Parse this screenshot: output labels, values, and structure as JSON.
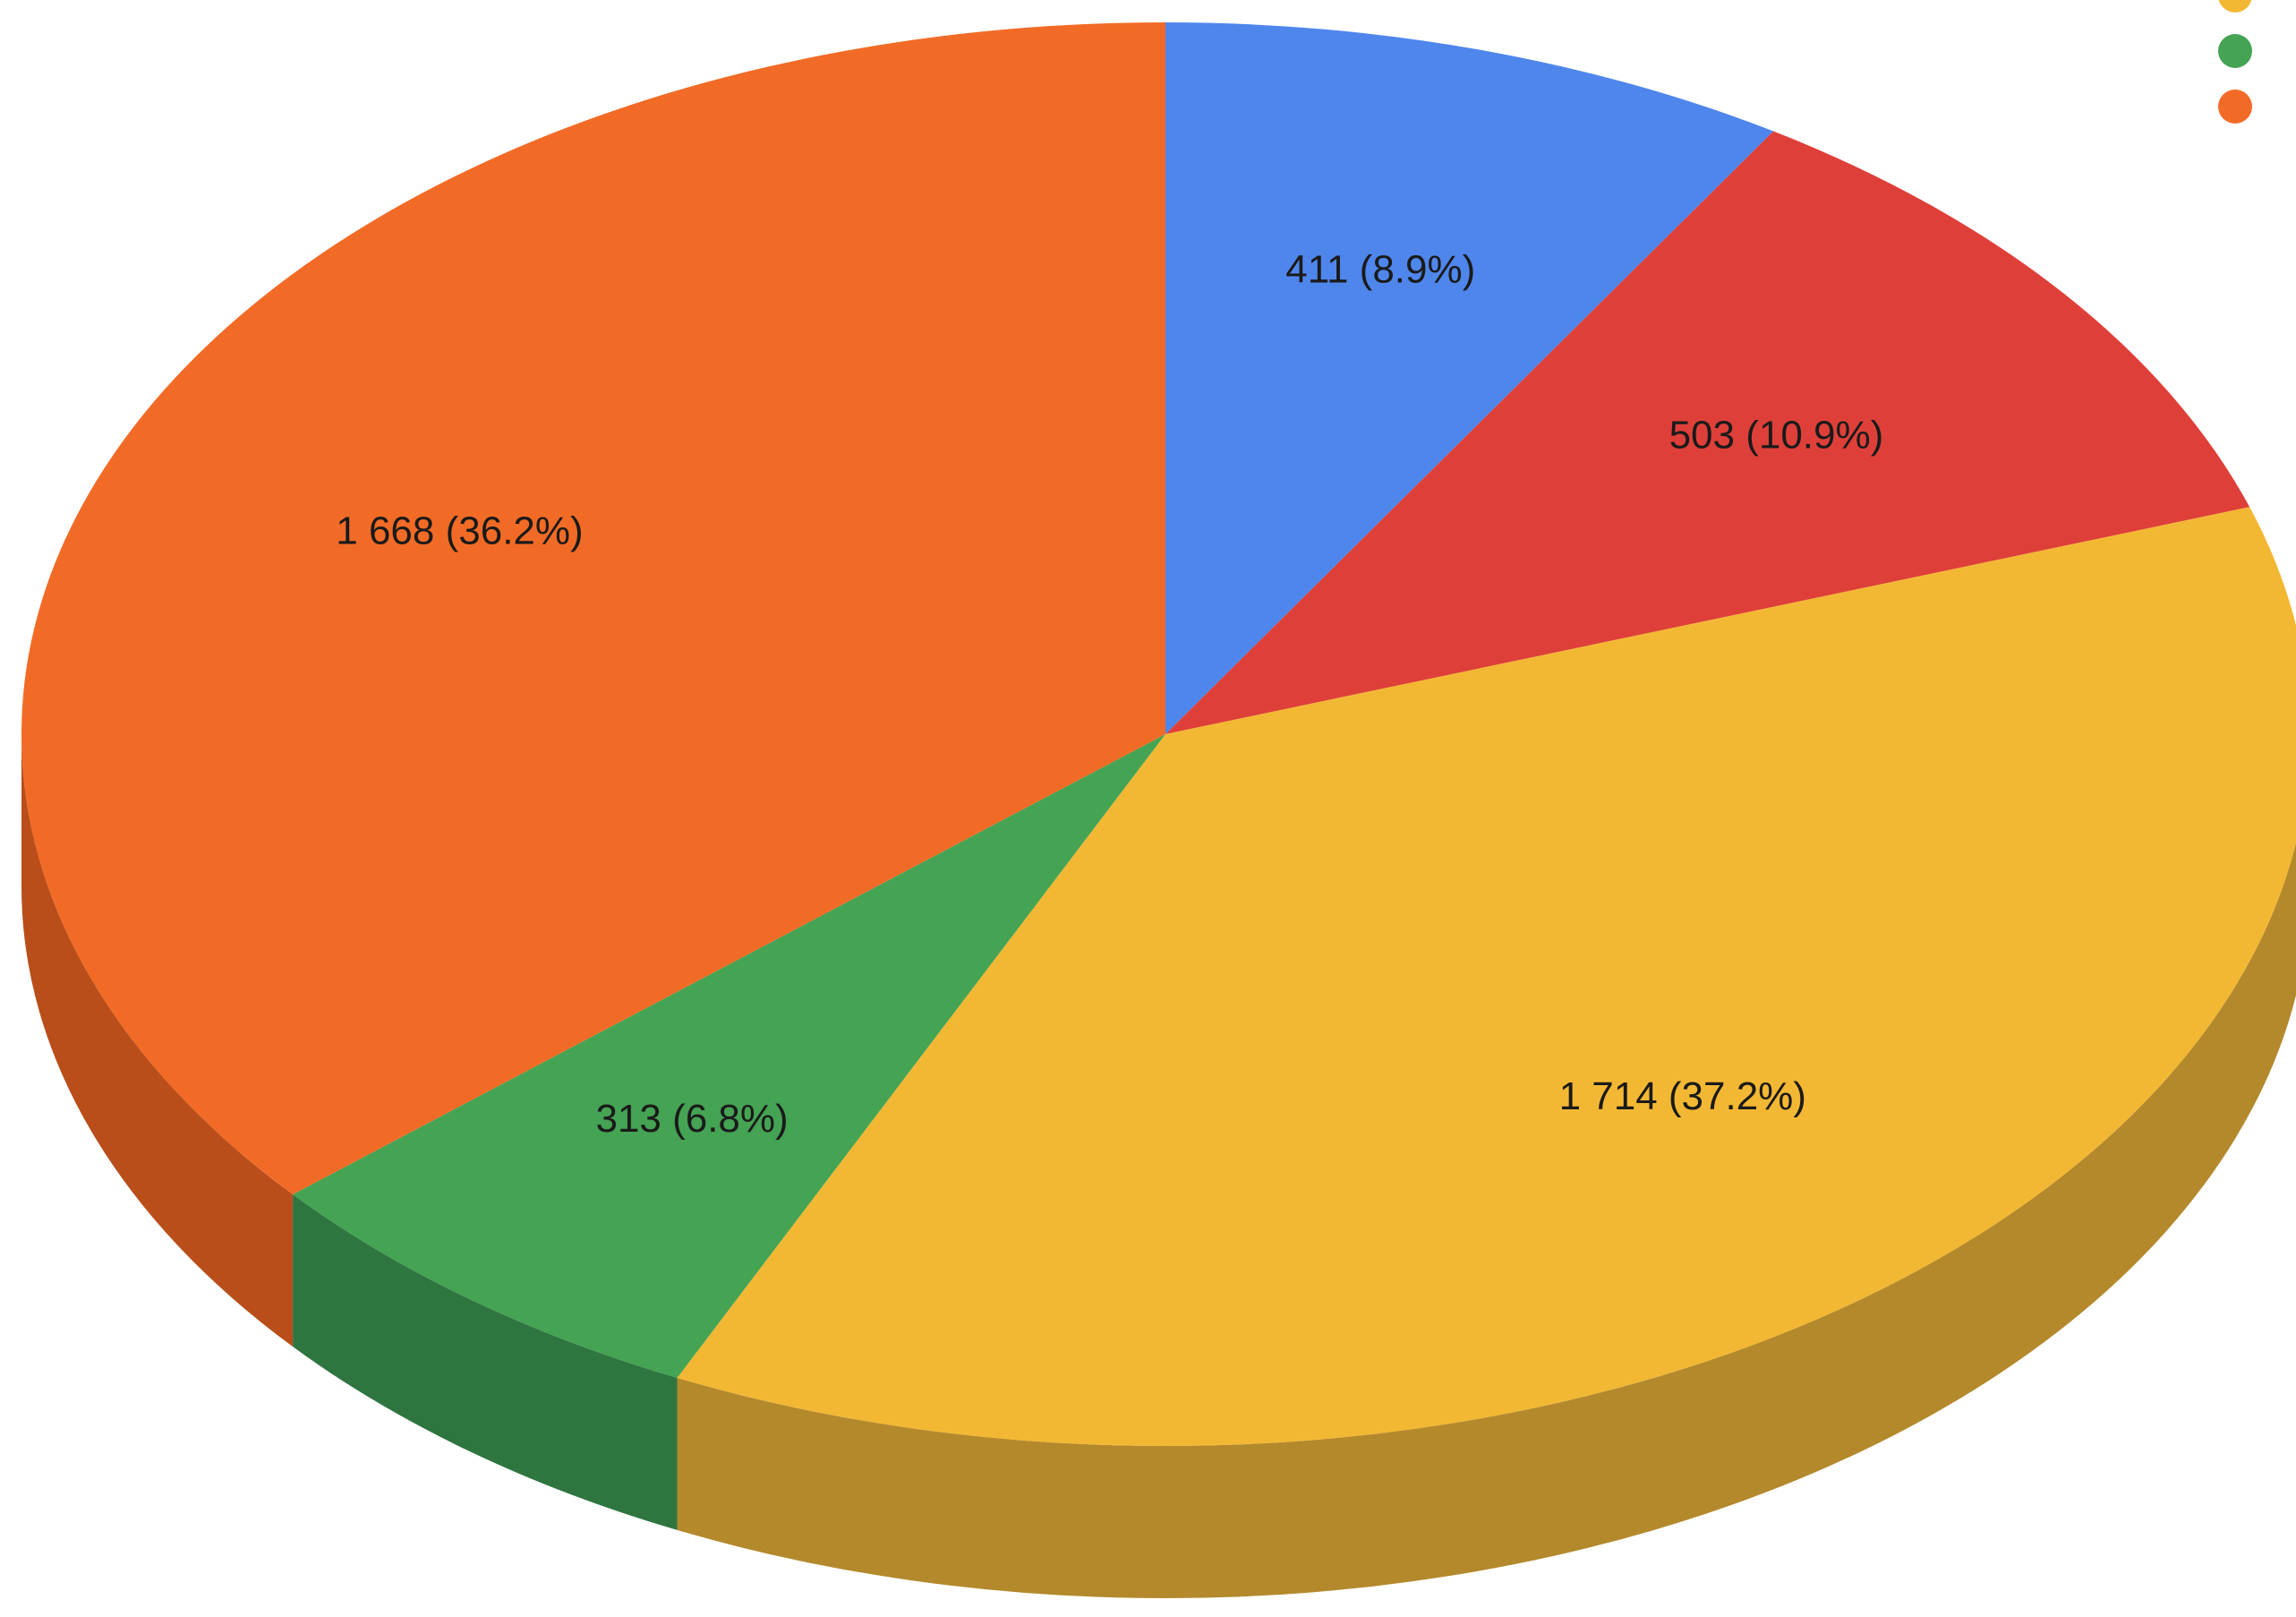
{
  "chart_data": {
    "type": "pie",
    "variant": "3d",
    "title": "",
    "start": "top",
    "direction": "clockwise",
    "legend": {
      "placement": "top-right",
      "entries_visible": false
    },
    "slices": [
      {
        "value": 411,
        "percent": 8.9,
        "label": "411 (8.9%)",
        "color": "#4f86ec"
      },
      {
        "value": 503,
        "percent": 10.9,
        "label": "503 (10.9%)",
        "color": "#de4039"
      },
      {
        "value": 1714,
        "percent": 37.2,
        "label": "1 714 (37.2%)",
        "color": "#f3b833"
      },
      {
        "value": 313,
        "percent": 6.8,
        "label": "313 (6.8%)",
        "color": "#45a354"
      },
      {
        "value": 1668,
        "percent": 36.2,
        "label": "1 668 (36.2%)",
        "color": "#f26b26"
      }
    ],
    "side_colors": [
      "#2f5fb8",
      "#a5302a",
      "#b3892c",
      "#2e7540",
      "#b94e1a"
    ]
  }
}
